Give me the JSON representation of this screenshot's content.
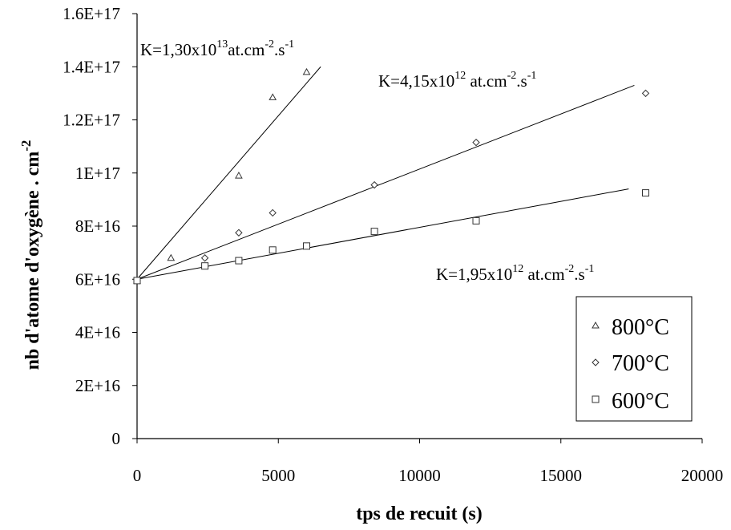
{
  "chart_data": {
    "type": "scatter",
    "xlabel": "tps de recuit (s)",
    "ylabel_main": "nb d'atome d'oxygène . cm",
    "ylabel_exp": "-2",
    "xlim": [
      0,
      20000
    ],
    "ylim": [
      0,
      1.6e+17
    ],
    "x_ticks": [
      "0",
      "5000",
      "10000",
      "15000",
      "20000"
    ],
    "y_ticks": [
      "0",
      "2E+16",
      "4E+16",
      "6E+16",
      "8E+16",
      "1E+17",
      "1.2E+17",
      "1.4E+17",
      "1.6E+17"
    ],
    "grid": false,
    "legend_position": "bottom-right",
    "series": [
      {
        "name": "800°C",
        "marker": "triangle",
        "points": [
          [
            0,
            5.95e+16
          ],
          [
            1200,
            6.8e+16
          ],
          [
            3600,
            9.9e+16
          ],
          [
            4800,
            1.285e+17
          ],
          [
            6000,
            1.38e+17
          ]
        ],
        "fit": {
          "x0": 0,
          "y0": 6e+16,
          "x1": 6500,
          "y1": 1.4e+17
        }
      },
      {
        "name": "700°C",
        "marker": "diamond",
        "points": [
          [
            0,
            5.95e+16
          ],
          [
            2400,
            6.8e+16
          ],
          [
            3600,
            7.75e+16
          ],
          [
            4800,
            8.5e+16
          ],
          [
            8400,
            9.55e+16
          ],
          [
            12000,
            1.115e+17
          ],
          [
            18000,
            1.3e+17
          ]
        ],
        "fit": {
          "x0": 0,
          "y0": 6e+16,
          "x1": 17600,
          "y1": 1.33e+17
        }
      },
      {
        "name": "600°C",
        "marker": "square",
        "points": [
          [
            0,
            5.95e+16
          ],
          [
            2400,
            6.5e+16
          ],
          [
            3600,
            6.7e+16
          ],
          [
            4800,
            7.1e+16
          ],
          [
            6000,
            7.25e+16
          ],
          [
            8400,
            7.8e+16
          ],
          [
            12000,
            8.2e+16
          ],
          [
            18000,
            9.25e+16
          ]
        ],
        "fit": {
          "x0": 0,
          "y0": 6e+16,
          "x1": 17400,
          "y1": 9.4e+16
        }
      }
    ],
    "annotations": [
      {
        "base": "K=1,30x10",
        "exp1": "13",
        "mid": "at.cm",
        "exp2": "-2",
        "dot": ".s",
        "exp3": "-1"
      },
      {
        "base": "K=4,15x10",
        "exp1": "12",
        "mid": " at.cm",
        "exp2": "-2",
        "dot": ".s",
        "exp3": "-1"
      },
      {
        "base": "K=1,95x10",
        "exp1": "12",
        "mid": " at.cm",
        "exp2": "-2",
        "dot": ".s",
        "exp3": "-1"
      }
    ]
  }
}
